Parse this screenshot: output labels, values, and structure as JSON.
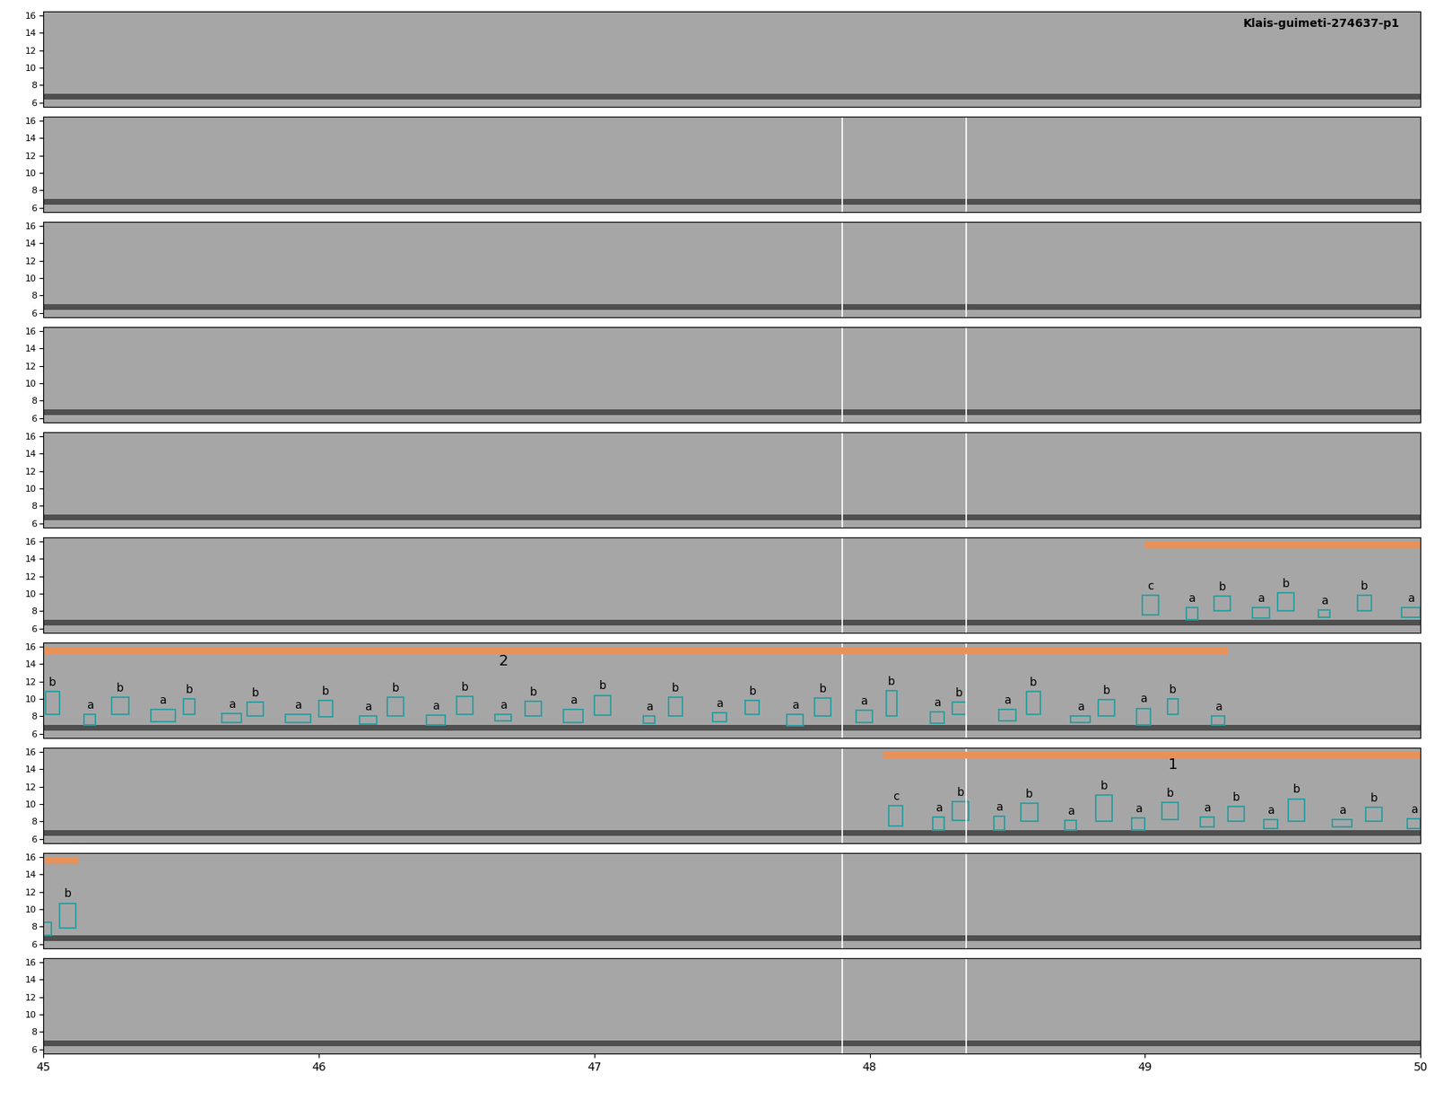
{
  "chart_data": {
    "type": "spectrogram",
    "title": "Klais-guimeti-274637-p1",
    "xlim": [
      45,
      50
    ],
    "xticks": [
      45,
      46,
      47,
      48,
      49,
      50
    ],
    "ylim": [
      5.5,
      16.5
    ],
    "yticks": [
      6,
      8,
      10,
      12,
      14,
      16
    ],
    "tick_labels": true,
    "noise_band": [
      6.3,
      7.0
    ],
    "box_color": "#2a9ea0",
    "band_color": "#e8925a",
    "panels": [
      {
        "markers": [],
        "bands": [],
        "boxes": []
      },
      {
        "markers": [
          47.9,
          48.35
        ],
        "bands": [],
        "boxes": []
      },
      {
        "markers": [
          47.9,
          48.35
        ],
        "bands": [],
        "boxes": []
      },
      {
        "markers": [
          47.9,
          48.35
        ],
        "bands": [],
        "boxes": []
      },
      {
        "markers": [
          47.9,
          48.35
        ],
        "bands": [],
        "boxes": []
      },
      {
        "markers": [
          47.9,
          48.35
        ],
        "bands": [
          {
            "t0": 49.0,
            "t1": 50.0,
            "f": 15.6,
            "label": null,
            "label_t": null
          }
        ],
        "boxes": [
          [
            "c",
            48.99,
            49.05,
            7.6,
            9.8
          ],
          [
            "a",
            49.15,
            49.19,
            7.0,
            8.4
          ],
          [
            "b",
            49.25,
            49.31,
            8.0,
            9.7
          ],
          [
            "a",
            49.39,
            49.45,
            7.2,
            8.4
          ],
          [
            "b",
            49.48,
            49.54,
            8.0,
            10.1
          ],
          [
            "a",
            49.63,
            49.67,
            7.3,
            8.1
          ],
          [
            "b",
            49.77,
            49.82,
            8.0,
            9.8
          ],
          [
            "a",
            49.93,
            50.0,
            7.3,
            8.4
          ]
        ]
      },
      {
        "markers": [
          47.9,
          48.35
        ],
        "bands": [
          {
            "t0": 45.0,
            "t1": 49.3,
            "f": 15.5,
            "label": "2",
            "label_t": 46.67
          }
        ],
        "boxes": [
          [
            "b",
            45.01,
            45.06,
            8.2,
            10.8
          ],
          [
            "a",
            45.15,
            45.19,
            7.0,
            8.2
          ],
          [
            "b",
            45.25,
            45.31,
            8.2,
            10.2
          ],
          [
            "a",
            45.39,
            45.48,
            7.4,
            8.8
          ],
          [
            "b",
            45.51,
            45.55,
            8.2,
            10.0
          ],
          [
            "a",
            45.65,
            45.72,
            7.3,
            8.3
          ],
          [
            "b",
            45.74,
            45.8,
            8.0,
            9.6
          ],
          [
            "a",
            45.88,
            45.97,
            7.3,
            8.2
          ],
          [
            "b",
            46.0,
            46.05,
            7.9,
            9.8
          ],
          [
            "a",
            46.15,
            46.21,
            7.1,
            8.0
          ],
          [
            "b",
            46.25,
            46.31,
            8.0,
            10.2
          ],
          [
            "a",
            46.39,
            46.46,
            7.0,
            8.1
          ],
          [
            "b",
            46.5,
            46.56,
            8.2,
            10.3
          ],
          [
            "a",
            46.64,
            46.7,
            7.5,
            8.2
          ],
          [
            "b",
            46.75,
            46.81,
            8.0,
            9.7
          ],
          [
            "a",
            46.89,
            46.96,
            7.3,
            8.8
          ],
          [
            "b",
            47.0,
            47.06,
            8.1,
            10.4
          ],
          [
            "a",
            47.18,
            47.22,
            7.2,
            8.0
          ],
          [
            "b",
            47.27,
            47.32,
            8.0,
            10.2
          ],
          [
            "a",
            47.43,
            47.48,
            7.4,
            8.4
          ],
          [
            "b",
            47.55,
            47.6,
            8.2,
            9.8
          ],
          [
            "a",
            47.7,
            47.76,
            6.9,
            8.2
          ],
          [
            "b",
            47.8,
            47.86,
            8.0,
            10.1
          ],
          [
            "a",
            47.95,
            48.01,
            7.3,
            8.7
          ],
          [
            "b",
            48.06,
            48.1,
            8.0,
            10.9
          ],
          [
            "a",
            48.22,
            48.27,
            7.2,
            8.5
          ],
          [
            "b",
            48.3,
            48.35,
            8.2,
            9.6
          ],
          [
            "a",
            48.47,
            48.53,
            7.5,
            8.8
          ],
          [
            "b",
            48.57,
            48.62,
            8.2,
            10.8
          ],
          [
            "a",
            48.73,
            48.8,
            7.3,
            8.0
          ],
          [
            "b",
            48.83,
            48.89,
            8.0,
            9.9
          ],
          [
            "a",
            48.97,
            49.02,
            7.0,
            8.9
          ],
          [
            "b",
            49.08,
            49.12,
            8.2,
            10.0
          ],
          [
            "a",
            49.24,
            49.29,
            7.0,
            8.0
          ]
        ]
      },
      {
        "markers": [
          47.9,
          48.35
        ],
        "bands": [
          {
            "t0": 48.05,
            "t1": 50.0,
            "f": 15.6,
            "label": "1",
            "label_t": 49.1
          }
        ],
        "boxes": [
          [
            "c",
            48.07,
            48.12,
            7.5,
            9.8
          ],
          [
            "a",
            48.23,
            48.27,
            7.0,
            8.5
          ],
          [
            "b",
            48.3,
            48.36,
            8.1,
            10.3
          ],
          [
            "a",
            48.45,
            48.49,
            7.0,
            8.6
          ],
          [
            "b",
            48.55,
            48.61,
            8.0,
            10.1
          ],
          [
            "a",
            48.71,
            48.75,
            7.0,
            8.1
          ],
          [
            "b",
            48.82,
            48.88,
            8.0,
            11.0
          ],
          [
            "a",
            48.95,
            49.0,
            7.0,
            8.4
          ],
          [
            "b",
            49.06,
            49.12,
            8.2,
            10.2
          ],
          [
            "a",
            49.2,
            49.25,
            7.4,
            8.5
          ],
          [
            "b",
            49.3,
            49.36,
            8.0,
            9.7
          ],
          [
            "a",
            49.43,
            49.48,
            7.2,
            8.2
          ],
          [
            "b",
            49.52,
            49.58,
            8.0,
            10.6
          ],
          [
            "a",
            49.68,
            49.75,
            7.4,
            8.2
          ],
          [
            "b",
            49.8,
            49.86,
            8.0,
            9.6
          ],
          [
            "a",
            49.95,
            50.0,
            7.2,
            8.3
          ]
        ]
      },
      {
        "markers": [
          47.9,
          48.35
        ],
        "bands": [
          {
            "t0": 45.0,
            "t1": 45.13,
            "f": 15.6,
            "label": null,
            "label_t": null
          }
        ],
        "boxes": [
          [
            null,
            45.0,
            45.03,
            7.0,
            8.5
          ],
          [
            "b",
            45.06,
            45.12,
            7.8,
            10.7
          ]
        ]
      },
      {
        "markers": [
          47.9,
          48.35
        ],
        "bands": [],
        "boxes": []
      }
    ]
  }
}
